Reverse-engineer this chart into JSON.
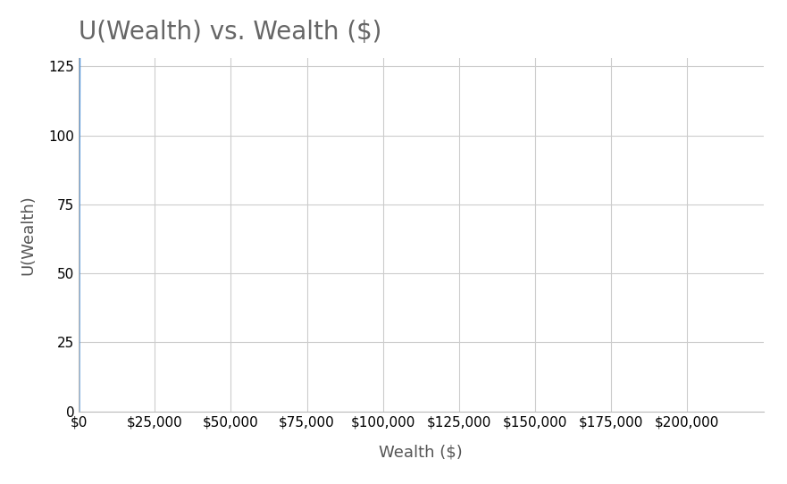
{
  "title": "U(Wealth) vs. Wealth ($)",
  "xlabel": "Wealth ($)",
  "ylabel": "U(Wealth)",
  "line_color": "#4a90d9",
  "line_width": 2.2,
  "x_min": 0,
  "x_max": 225000,
  "y_min": 0,
  "y_max": 128,
  "x_ticks": [
    0,
    25000,
    50000,
    75000,
    100000,
    125000,
    150000,
    175000,
    200000
  ],
  "y_ticks": [
    0,
    25,
    50,
    75,
    100,
    125
  ],
  "title_fontsize": 20,
  "title_color": "#666666",
  "axis_label_fontsize": 13,
  "tick_fontsize": 11,
  "grid_color": "#cccccc",
  "grid_linewidth": 0.8,
  "background_color": "#ffffff",
  "scale_factor": 10.0,
  "power": 0.5
}
